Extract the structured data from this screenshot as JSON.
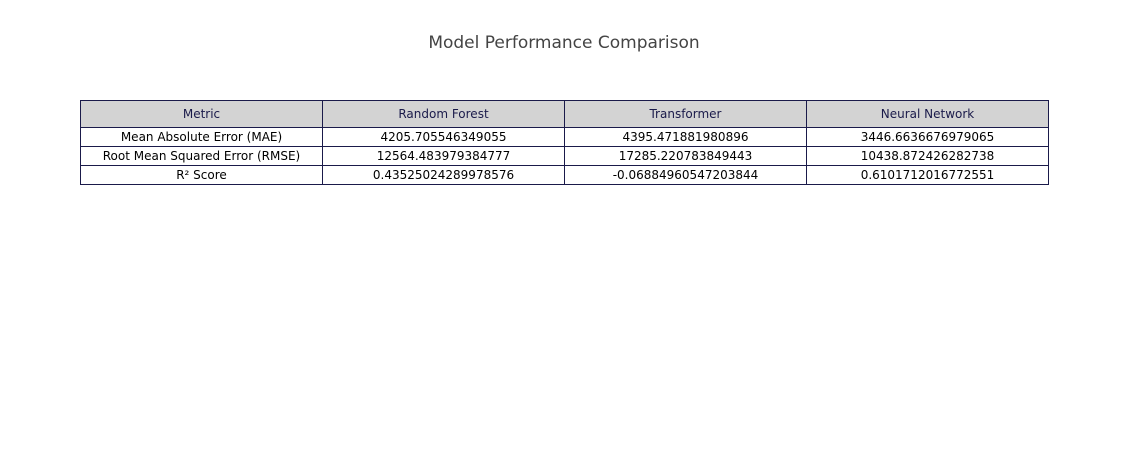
{
  "chart_data": {
    "type": "table",
    "title": "Model Performance Comparison",
    "columns": [
      "Metric",
      "Random Forest",
      "Transformer",
      "Neural Network"
    ],
    "rows": [
      [
        "Mean Absolute Error (MAE)",
        "4205.705546349055",
        "4395.471881980896",
        "3446.6636676979065"
      ],
      [
        "Root Mean Squared Error (RMSE)",
        "12564.483979384777",
        "17285.220783849443",
        "10438.872426282738"
      ],
      [
        "R² Score",
        "0.43525024289978576",
        "-0.06884960547203844",
        "0.6101712016772551"
      ]
    ],
    "colors": {
      "header_fill": "#d3d3d3",
      "cell_fill": "#ffffff",
      "line": "#1a1a4a",
      "title": "#444444"
    }
  }
}
